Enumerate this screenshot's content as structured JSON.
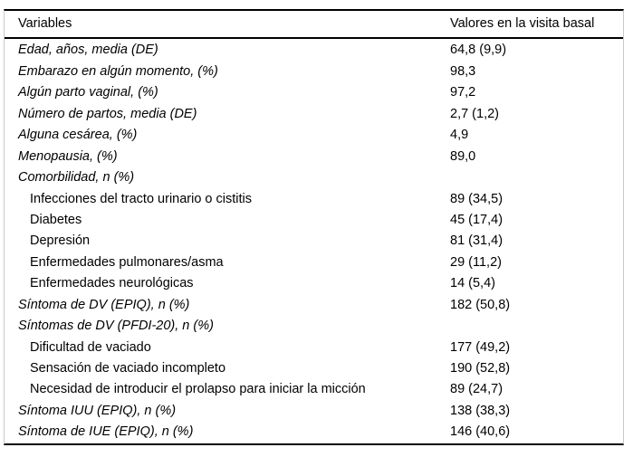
{
  "table": {
    "header": {
      "variables_label": "Variables",
      "values_label": "Valores en la visita basal"
    },
    "rows": [
      {
        "label": "Edad, años, media (DE)",
        "value": "64,8 (9,9)",
        "style": "italic",
        "indent": false
      },
      {
        "label": "Embarazo en algún momento, (%)",
        "value": "98,3",
        "style": "italic",
        "indent": false
      },
      {
        "label": "Algún parto vaginal, (%)",
        "value": "97,2",
        "style": "italic",
        "indent": false
      },
      {
        "label": "Número de partos, media (DE)",
        "value": "2,7 (1,2)",
        "style": "italic",
        "indent": false
      },
      {
        "label": "Alguna cesárea, (%)",
        "value": "4,9",
        "style": "italic",
        "indent": false
      },
      {
        "label": "Menopausia, (%)",
        "value": "89,0",
        "style": "italic",
        "indent": false
      },
      {
        "label": "Comorbilidad, n (%)",
        "value": "",
        "style": "italic",
        "indent": false
      },
      {
        "label": "Infecciones del tracto urinario o cistitis",
        "value": "89 (34,5)",
        "style": "normal",
        "indent": true
      },
      {
        "label": "Diabetes",
        "value": "45 (17,4)",
        "style": "normal",
        "indent": true
      },
      {
        "label": "Depresión",
        "value": "81 (31,4)",
        "style": "normal",
        "indent": true
      },
      {
        "label": "Enfermedades pulmonares/asma",
        "value": "29 (11,2)",
        "style": "normal",
        "indent": true
      },
      {
        "label": "Enfermedades neurológicas",
        "value": "14 (5,4)",
        "style": "normal",
        "indent": true
      },
      {
        "label": "Síntoma de DV (EPIQ), n (%)",
        "value": "182 (50,8)",
        "style": "italic",
        "indent": false
      },
      {
        "label": "Síntomas de DV (PFDI-20), n (%)",
        "value": "",
        "style": "italic",
        "indent": false
      },
      {
        "label": "Dificultad de vaciado",
        "value": "177 (49,2)",
        "style": "normal",
        "indent": true
      },
      {
        "label": "Sensación de vaciado incompleto",
        "value": "190 (52,8)",
        "style": "normal",
        "indent": true
      },
      {
        "label": "Necesidad de introducir el prolapso para iniciar la micción",
        "value": "89 (24,7)",
        "style": "normal",
        "indent": true
      },
      {
        "label": "Síntoma IUU (EPIQ), n (%)",
        "value": "138 (38,3)",
        "style": "italic",
        "indent": false
      },
      {
        "label": "Síntoma de IUE (EPIQ), n (%)",
        "value": "146 (40,6)",
        "style": "italic",
        "indent": false
      }
    ],
    "colors": {
      "text": "#000000",
      "rule": "#000000",
      "frame": "#c9c9c9",
      "background": "#ffffff"
    }
  }
}
